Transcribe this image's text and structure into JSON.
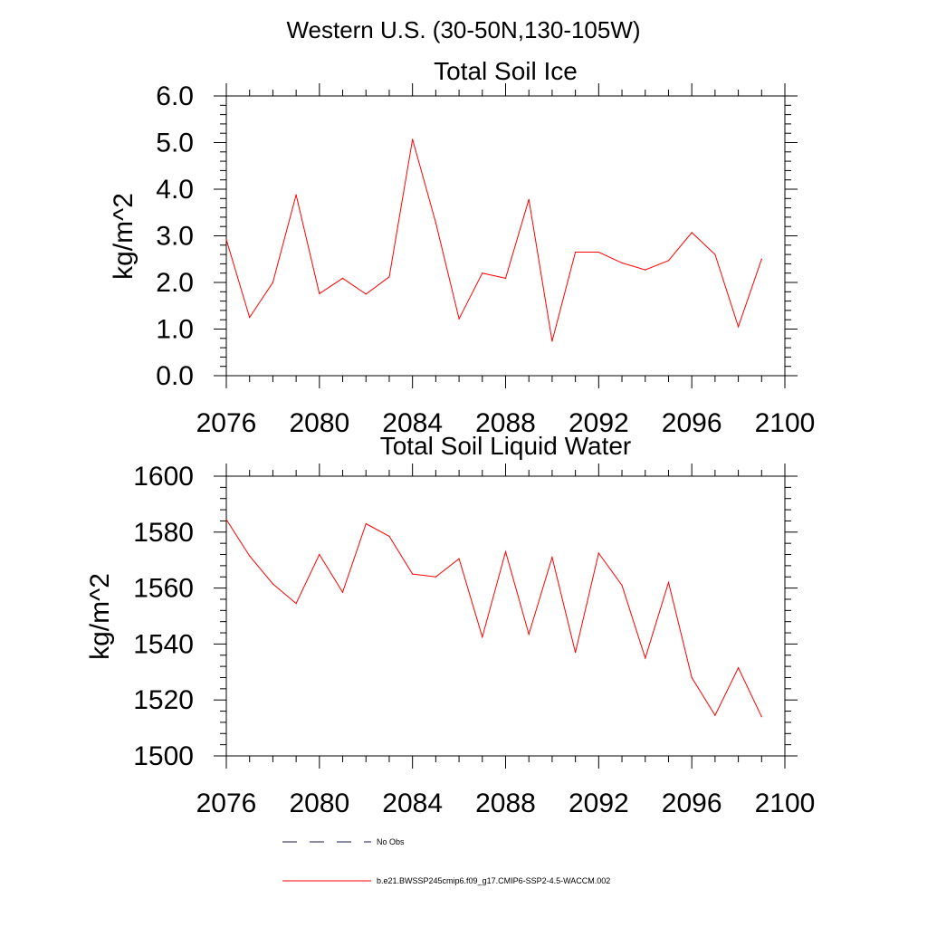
{
  "page_title": "Western U.S. (30-50N,130-105W)",
  "chart_data": [
    {
      "type": "line",
      "title": "Total Soil Ice",
      "ylabel": "kg/m^2",
      "xlabel": "",
      "xlim": [
        2076,
        2100
      ],
      "ylim": [
        0,
        6
      ],
      "x_ticks": [
        "2076",
        "2080",
        "2084",
        "2088",
        "2092",
        "2096",
        "2100"
      ],
      "y_ticks": [
        "0.0",
        "1.0",
        "2.0",
        "3.0",
        "4.0",
        "5.0",
        "6.0"
      ],
      "x": [
        2076,
        2077,
        2078,
        2079,
        2080,
        2081,
        2082,
        2083,
        2084,
        2085,
        2086,
        2087,
        2088,
        2089,
        2090,
        2091,
        2092,
        2093,
        2094,
        2095,
        2096,
        2097,
        2098,
        2099
      ],
      "series": [
        {
          "name": "b.e21.BWSSP245cmip6.f09_g17.CMIP6-SSP2-4.5-WACCM.002",
          "color": "#ff0000",
          "values": [
            2.92,
            1.25,
            2.0,
            3.88,
            1.76,
            2.09,
            1.75,
            2.12,
            5.07,
            3.28,
            1.22,
            2.2,
            2.09,
            3.78,
            0.74,
            2.65,
            2.65,
            2.42,
            2.27,
            2.47,
            3.07,
            2.6,
            1.05,
            2.5
          ]
        }
      ],
      "grid": false
    },
    {
      "type": "line",
      "title": "Total Soil Liquid Water",
      "ylabel": "kg/m^2",
      "xlabel": "",
      "xlim": [
        2076,
        2100
      ],
      "ylim": [
        1500,
        1600
      ],
      "x_ticks": [
        "2076",
        "2080",
        "2084",
        "2088",
        "2092",
        "2096",
        "2100"
      ],
      "y_ticks": [
        "1500",
        "1520",
        "1540",
        "1560",
        "1580",
        "1600"
      ],
      "x": [
        2076,
        2077,
        2078,
        2079,
        2080,
        2081,
        2082,
        2083,
        2084,
        2085,
        2086,
        2087,
        2088,
        2089,
        2090,
        2091,
        2092,
        2093,
        2094,
        2095,
        2096,
        2097,
        2098,
        2099
      ],
      "series": [
        {
          "name": "b.e21.BWSSP245cmip6.f09_g17.CMIP6-SSP2-4.5-WACCM.002",
          "color": "#ff0000",
          "values": [
            1584.5,
            1571.5,
            1561.5,
            1554.5,
            1572.0,
            1558.5,
            1583.0,
            1578.5,
            1565.0,
            1564.0,
            1570.5,
            1542.5,
            1573.0,
            1543.5,
            1571.0,
            1537.0,
            1572.5,
            1561.0,
            1535.0,
            1562.0,
            1528.0,
            1514.5,
            1531.5,
            1514.0
          ]
        }
      ],
      "grid": false
    }
  ],
  "legend": {
    "placement": "bottom",
    "items": [
      {
        "label": "No Obs",
        "style": "dashed",
        "color": "#1a1a4d"
      },
      {
        "label": "b.e21.BWSSP245cmip6.f09_g17.CMIP6-SSP2-4.5-WACCM.002",
        "style": "solid",
        "color": "#ff0000"
      }
    ]
  }
}
